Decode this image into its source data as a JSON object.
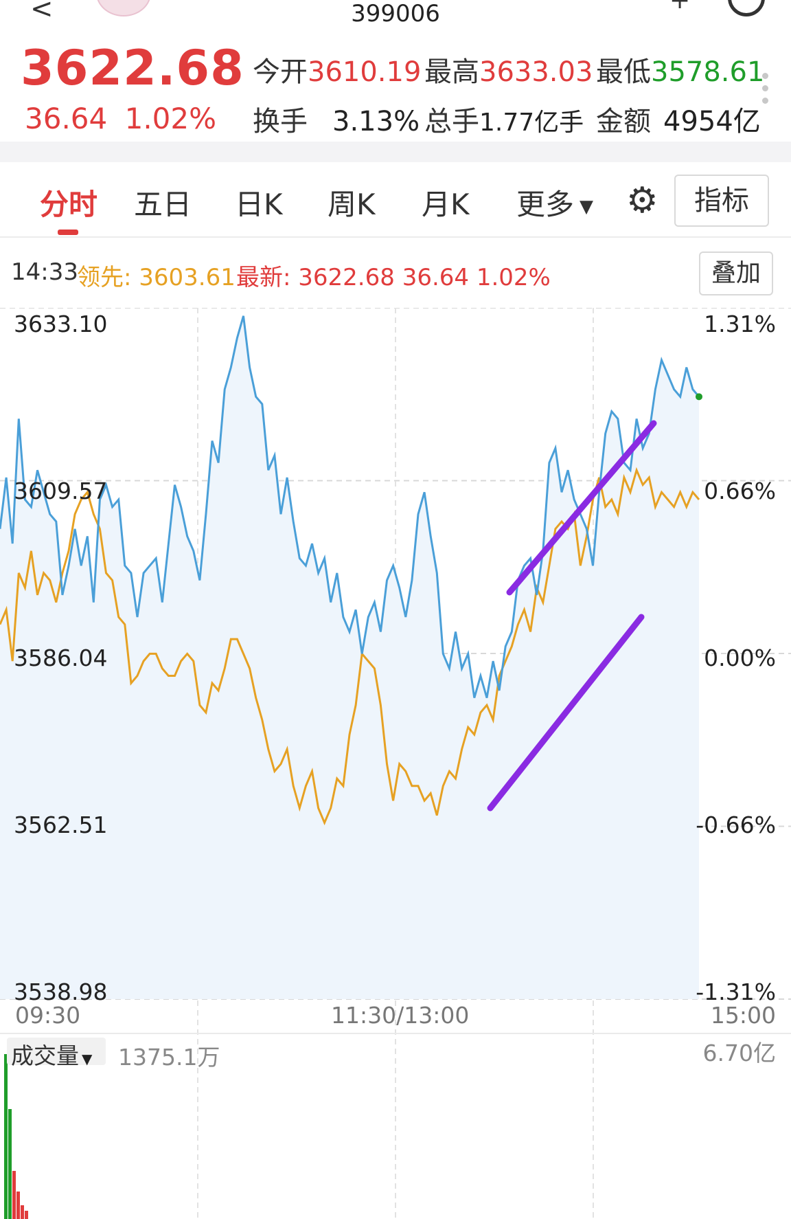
{
  "header": {
    "code": "399006",
    "price": "3622.68",
    "change": "36.64",
    "change_pct": "1.02%"
  },
  "stats": {
    "open_label": "今开",
    "open": "3610.19",
    "high_label": "最高",
    "high": "3633.03",
    "low_label": "最低",
    "low": "3578.61",
    "turnover_label": "换手",
    "turnover": "3.13%",
    "volume_label": "总手",
    "volume": "1.77亿手",
    "amount_label": "金额",
    "amount": "4954亿"
  },
  "tabs": [
    "分时",
    "五日",
    "日K",
    "周K",
    "月K",
    "更多"
  ],
  "buttons": {
    "indicator": "指标",
    "overlay": "叠加"
  },
  "infobar": {
    "time": "14:33",
    "lead_label": "领先:",
    "lead_value": "3603.61",
    "latest_label": "最新:",
    "latest_value": "3622.68 36.64 1.02%"
  },
  "colors": {
    "up": "#e03c3c",
    "down": "#1f9d2a",
    "price_line": "#4a9fd8",
    "lead_line": "#e6a123",
    "annotation": "#8a2be2",
    "fill": "#eef5fc"
  },
  "icons": {
    "settings": "gear-icon",
    "dropdown": "caret-down-icon"
  },
  "volume": {
    "label": "成交量",
    "value": "1375.1万",
    "max": "6.70亿"
  },
  "chart_data": {
    "type": "line",
    "x_ticks": [
      "09:30",
      "11:30/13:00",
      "15:00"
    ],
    "y_left_ticks": [
      "3633.10",
      "3609.57",
      "3586.04",
      "3562.51",
      "3538.98"
    ],
    "y_right_ticks": [
      "1.31%",
      "0.66%",
      "0.00%",
      "-0.66%",
      "-1.31%"
    ],
    "ylim": [
      3538.98,
      3633.1
    ],
    "base": 3586.04,
    "series": [
      {
        "color": "#4a9fd8",
        "values": [
          3603,
          3610,
          3601,
          3618,
          3607,
          3606,
          3611,
          3608,
          3605,
          3604,
          3594,
          3598,
          3603,
          3598,
          3602,
          3593,
          3607,
          3609,
          3606,
          3607,
          3598,
          3597,
          3591,
          3597,
          3598,
          3599,
          3593,
          3601,
          3609,
          3606,
          3602,
          3600,
          3596,
          3605,
          3615,
          3612,
          3622,
          3625,
          3629,
          3632,
          3625,
          3621,
          3620,
          3611,
          3613,
          3605,
          3610,
          3604,
          3599,
          3598,
          3601,
          3597,
          3599,
          3593,
          3597,
          3591,
          3589,
          3592,
          3586,
          3591,
          3593,
          3589,
          3596,
          3598,
          3595,
          3591,
          3596,
          3605,
          3608,
          3602,
          3597,
          3586,
          3584,
          3589,
          3584,
          3586,
          3580,
          3583,
          3580,
          3585,
          3581,
          3587,
          3589,
          3596,
          3598,
          3599,
          3594,
          3600,
          3612,
          3614,
          3608,
          3611,
          3607,
          3605,
          3603,
          3598,
          3608,
          3616,
          3619,
          3618,
          3612,
          3611,
          3618,
          3614,
          3616,
          3622,
          3626,
          3624,
          3622,
          3621,
          3625,
          3622,
          3621
        ]
      },
      {
        "color": "#e6a123",
        "values": [
          3590,
          3592,
          3585,
          3597,
          3595,
          3600,
          3594,
          3597,
          3596,
          3593,
          3597,
          3600,
          3605,
          3607,
          3608,
          3605,
          3603,
          3597,
          3596,
          3591,
          3590,
          3582,
          3583,
          3585,
          3586,
          3586,
          3584,
          3583,
          3583,
          3585,
          3586,
          3585,
          3579,
          3578,
          3582,
          3581,
          3584,
          3588,
          3588,
          3586,
          3584,
          3580,
          3577,
          3573,
          3570,
          3571,
          3573,
          3568,
          3565,
          3568,
          3570,
          3565,
          3563,
          3565,
          3569,
          3568,
          3575,
          3579,
          3586,
          3585,
          3584,
          3579,
          3571,
          3566,
          3571,
          3570,
          3568,
          3568,
          3566,
          3567,
          3564,
          3568,
          3570,
          3569,
          3573,
          3576,
          3575,
          3578,
          3579,
          3577,
          3583,
          3585,
          3587,
          3590,
          3592,
          3589,
          3595,
          3593,
          3598,
          3603,
          3604,
          3603,
          3605,
          3598,
          3602,
          3607,
          3610,
          3606,
          3607,
          3605,
          3610,
          3608,
          3611,
          3609,
          3610,
          3606,
          3608,
          3607,
          3606,
          3608,
          3606,
          3608,
          3607
        ]
      }
    ],
    "annotations": [
      "purple-trend-line-upper",
      "purple-trend-line-lower"
    ]
  }
}
